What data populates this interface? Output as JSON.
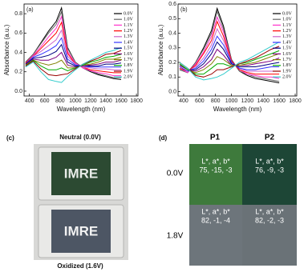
{
  "chart_data": [
    {
      "type": "line",
      "panel_label": "(a)",
      "xlabel": "Wavelength (nm)",
      "ylabel": "Absorbance (a.u.)",
      "x": [
        350,
        450,
        550,
        650,
        750,
        820,
        900,
        1000,
        1100,
        1200,
        1300,
        1400,
        1500,
        1600
      ],
      "xlim": [
        330,
        1820
      ],
      "xticks": [
        400,
        600,
        800,
        1000,
        1200,
        1400,
        1600,
        1800
      ],
      "ylim": [
        -0.05,
        0.9
      ],
      "yticks": [
        {
          "value": 0,
          "label": "0.0"
        },
        0.2,
        0.4,
        0.6,
        0.8
      ],
      "legend": "right",
      "series": [
        {
          "name": "0.0V",
          "color": "#000000",
          "values": [
            0.3,
            0.38,
            0.5,
            0.62,
            0.72,
            0.86,
            0.45,
            0.3,
            0.24,
            0.2,
            0.17,
            0.15,
            0.13,
            0.12
          ]
        },
        {
          "name": "1.0V",
          "color": "#666666",
          "values": [
            0.3,
            0.38,
            0.49,
            0.6,
            0.69,
            0.82,
            0.44,
            0.3,
            0.24,
            0.21,
            0.18,
            0.16,
            0.14,
            0.14
          ]
        },
        {
          "name": "1.1V",
          "color": "#ff33cc",
          "values": [
            0.29,
            0.37,
            0.46,
            0.56,
            0.65,
            0.77,
            0.41,
            0.29,
            0.24,
            0.21,
            0.19,
            0.18,
            0.16,
            0.16
          ]
        },
        {
          "name": "1.2V",
          "color": "#ff0000",
          "values": [
            0.29,
            0.36,
            0.44,
            0.52,
            0.6,
            0.71,
            0.39,
            0.28,
            0.25,
            0.22,
            0.21,
            0.2,
            0.19,
            0.19
          ]
        },
        {
          "name": "1.3V",
          "color": "#cc66cc",
          "values": [
            0.28,
            0.36,
            0.41,
            0.47,
            0.53,
            0.63,
            0.36,
            0.28,
            0.25,
            0.24,
            0.23,
            0.23,
            0.22,
            0.22
          ]
        },
        {
          "name": "1.4V",
          "color": "#3333ff",
          "values": [
            0.28,
            0.35,
            0.38,
            0.42,
            0.47,
            0.55,
            0.33,
            0.27,
            0.26,
            0.25,
            0.25,
            0.25,
            0.25,
            0.25
          ]
        },
        {
          "name": "1.5V",
          "color": "#000080",
          "values": [
            0.28,
            0.34,
            0.35,
            0.37,
            0.41,
            0.48,
            0.3,
            0.26,
            0.26,
            0.26,
            0.26,
            0.28,
            0.28,
            0.29
          ]
        },
        {
          "name": "1.6V",
          "color": "#800080",
          "values": [
            0.27,
            0.33,
            0.32,
            0.32,
            0.35,
            0.4,
            0.27,
            0.25,
            0.26,
            0.27,
            0.28,
            0.3,
            0.3,
            0.32
          ]
        },
        {
          "name": "1.7V",
          "color": "#808000",
          "values": [
            0.27,
            0.32,
            0.29,
            0.27,
            0.29,
            0.32,
            0.24,
            0.24,
            0.27,
            0.28,
            0.3,
            0.33,
            0.33,
            0.35
          ]
        },
        {
          "name": "1.8V",
          "color": "#00aa00",
          "values": [
            0.26,
            0.32,
            0.26,
            0.22,
            0.22,
            0.24,
            0.21,
            0.24,
            0.27,
            0.3,
            0.32,
            0.35,
            0.36,
            0.38
          ]
        },
        {
          "name": "1.9V",
          "color": "#990000",
          "values": [
            0.26,
            0.31,
            0.23,
            0.17,
            0.16,
            0.17,
            0.18,
            0.23,
            0.28,
            0.31,
            0.34,
            0.38,
            0.39,
            0.42
          ]
        },
        {
          "name": "2.0V",
          "color": "#33cccc",
          "values": [
            0.25,
            0.3,
            0.2,
            0.12,
            0.1,
            0.09,
            0.15,
            0.22,
            0.28,
            0.32,
            0.36,
            0.4,
            0.42,
            0.45
          ]
        }
      ]
    },
    {
      "type": "line",
      "panel_label": "(b)",
      "xlabel": "Wavelength (nm)",
      "ylabel": "Absorbance (a.u.)",
      "x": [
        350,
        450,
        550,
        650,
        750,
        820,
        900,
        1000,
        1100,
        1200,
        1300,
        1400,
        1500,
        1600
      ],
      "xlim": [
        330,
        1820
      ],
      "xticks": [
        400,
        600,
        800,
        1000,
        1200,
        1400,
        1600,
        1800
      ],
      "ylim": [
        -0.03,
        0.6
      ],
      "yticks": [
        {
          "value": 0,
          "label": "0.0"
        },
        0.1,
        0.2,
        0.3,
        0.4,
        0.5,
        0.6
      ],
      "legend": "right",
      "series": [
        {
          "name": "0.0V",
          "color": "#000000",
          "values": [
            0.15,
            0.13,
            0.2,
            0.3,
            0.42,
            0.57,
            0.45,
            0.22,
            0.14,
            0.11,
            0.09,
            0.08,
            0.07,
            0.06
          ]
        },
        {
          "name": "1.0V",
          "color": "#666666",
          "values": [
            0.15,
            0.13,
            0.2,
            0.29,
            0.4,
            0.55,
            0.43,
            0.22,
            0.14,
            0.12,
            0.1,
            0.09,
            0.08,
            0.07
          ]
        },
        {
          "name": "1.1V",
          "color": "#ff33cc",
          "values": [
            0.16,
            0.13,
            0.19,
            0.27,
            0.38,
            0.51,
            0.41,
            0.21,
            0.15,
            0.12,
            0.11,
            0.1,
            0.1,
            0.09
          ]
        },
        {
          "name": "1.2V",
          "color": "#ff0000",
          "values": [
            0.16,
            0.14,
            0.18,
            0.26,
            0.35,
            0.48,
            0.38,
            0.21,
            0.15,
            0.13,
            0.12,
            0.12,
            0.12,
            0.12
          ]
        },
        {
          "name": "1.3V",
          "color": "#cc66cc",
          "values": [
            0.17,
            0.14,
            0.17,
            0.23,
            0.32,
            0.43,
            0.35,
            0.2,
            0.16,
            0.14,
            0.14,
            0.14,
            0.14,
            0.14
          ]
        },
        {
          "name": "1.4V",
          "color": "#3333ff",
          "values": [
            0.17,
            0.14,
            0.16,
            0.21,
            0.29,
            0.38,
            0.32,
            0.2,
            0.16,
            0.15,
            0.15,
            0.16,
            0.17,
            0.17
          ]
        },
        {
          "name": "1.5V",
          "color": "#000080",
          "values": [
            0.18,
            0.15,
            0.15,
            0.19,
            0.26,
            0.34,
            0.29,
            0.19,
            0.17,
            0.17,
            0.17,
            0.18,
            0.19,
            0.2
          ]
        },
        {
          "name": "1.6V",
          "color": "#800080",
          "values": [
            0.18,
            0.15,
            0.14,
            0.17,
            0.22,
            0.29,
            0.25,
            0.18,
            0.18,
            0.18,
            0.19,
            0.2,
            0.21,
            0.23
          ]
        },
        {
          "name": "1.7V",
          "color": "#808000",
          "values": [
            0.19,
            0.15,
            0.13,
            0.15,
            0.19,
            0.24,
            0.22,
            0.18,
            0.18,
            0.19,
            0.2,
            0.22,
            0.24,
            0.26
          ]
        },
        {
          "name": "1.8V",
          "color": "#00aa00",
          "values": [
            0.19,
            0.15,
            0.12,
            0.12,
            0.16,
            0.19,
            0.19,
            0.17,
            0.19,
            0.2,
            0.22,
            0.24,
            0.26,
            0.28
          ]
        },
        {
          "name": "1.9V",
          "color": "#990000",
          "values": [
            0.2,
            0.16,
            0.11,
            0.1,
            0.12,
            0.15,
            0.15,
            0.17,
            0.19,
            0.21,
            0.23,
            0.26,
            0.29,
            0.31
          ]
        },
        {
          "name": "2.0V",
          "color": "#33cccc",
          "values": [
            0.2,
            0.16,
            0.1,
            0.08,
            0.09,
            0.1,
            0.12,
            0.16,
            0.2,
            0.22,
            0.25,
            0.28,
            0.31,
            0.34
          ]
        }
      ]
    }
  ],
  "panel_c": {
    "label": "(c)",
    "top_caption": "Neutral (0.0V)",
    "bottom_caption": "Oxidized (1.6V)",
    "device_text": [
      "IMRE",
      "IMRE"
    ]
  },
  "panel_d": {
    "label": "(d)",
    "columns": [
      "P1",
      "P2"
    ],
    "rows": [
      {
        "label": "0.0V",
        "cells": [
          {
            "header": "L*, a*, b*",
            "values": "75, -15, -3"
          },
          {
            "header": "L*, a*, b*",
            "values": "76, -9, -3"
          }
        ]
      },
      {
        "label": "1.8V",
        "cells": [
          {
            "header": "L*, a*, b*",
            "values": "82, -1, -4"
          },
          {
            "header": "L*, a*, b*",
            "values": "82, -2, -3"
          }
        ]
      }
    ]
  }
}
